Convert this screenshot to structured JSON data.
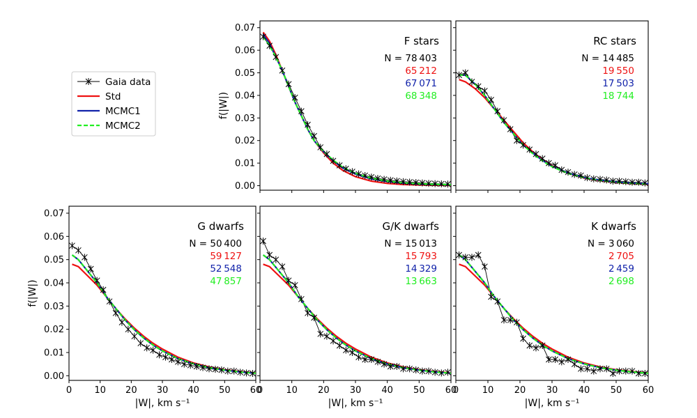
{
  "chart_data": {
    "type": "line",
    "legend": {
      "placement": "left, outside panels",
      "entries": [
        {
          "label": "Gaia data",
          "color": "#000000",
          "style": "line-star-markers"
        },
        {
          "label": "Std",
          "color": "#ee1111",
          "style": "solid"
        },
        {
          "label": "MCMC1",
          "color": "#1122aa",
          "style": "solid"
        },
        {
          "label": "MCMC2",
          "color": "#22ee22",
          "style": "dashed"
        }
      ]
    },
    "x_ticks": [
      "0",
      "10",
      "20",
      "30",
      "40",
      "50",
      "60"
    ],
    "xlim": [
      0,
      60
    ],
    "xlabel": "|W|,  km s⁻¹",
    "ylabel": "f(|W|)",
    "panels": [
      {
        "title": "F stars",
        "ylim": [
          -0.002,
          0.073
        ],
        "y_ticks": [
          "0.00",
          "0.01",
          "0.02",
          "0.03",
          "0.04",
          "0.05",
          "0.06",
          "0.07"
        ],
        "show_ylabel": true,
        "show_xlabel": false,
        "show_xticklabels": false,
        "show_yticklabels": true,
        "counts": [
          "N = 78 403",
          "65 212",
          "67 071",
          "68 348"
        ],
        "gaia": {
          "x": [
            1,
            3,
            5,
            7,
            9,
            11,
            13,
            15,
            17,
            19,
            21,
            23,
            25,
            27,
            29,
            31,
            33,
            35,
            37,
            39,
            41,
            43,
            45,
            47,
            49,
            51,
            53,
            55,
            57,
            59
          ],
          "y": [
            0.066,
            0.062,
            0.057,
            0.051,
            0.045,
            0.039,
            0.033,
            0.027,
            0.022,
            0.017,
            0.014,
            0.011,
            0.009,
            0.0075,
            0.0062,
            0.0052,
            0.0045,
            0.0038,
            0.0032,
            0.0028,
            0.0024,
            0.0021,
            0.0018,
            0.0016,
            0.0014,
            0.0012,
            0.001,
            0.0009,
            0.0008,
            0.0007
          ]
        },
        "std": {
          "x": [
            1,
            3,
            5,
            7,
            9,
            11,
            13,
            15,
            17,
            20,
            23,
            26,
            30,
            35,
            40,
            45,
            50,
            55,
            60
          ],
          "y": [
            0.068,
            0.064,
            0.058,
            0.051,
            0.044,
            0.037,
            0.031,
            0.025,
            0.02,
            0.0145,
            0.01,
            0.0068,
            0.004,
            0.002,
            0.001,
            0.0005,
            0.0003,
            0.0002,
            0.0001
          ]
        },
        "mcmc1": {
          "x": [
            1,
            3,
            5,
            7,
            9,
            11,
            13,
            15,
            17,
            20,
            23,
            26,
            30,
            35,
            40,
            45,
            50,
            55,
            60
          ],
          "y": [
            0.067,
            0.063,
            0.057,
            0.051,
            0.044,
            0.037,
            0.031,
            0.025,
            0.02,
            0.015,
            0.011,
            0.0078,
            0.0052,
            0.003,
            0.0018,
            0.0011,
            0.0007,
            0.0005,
            0.0003
          ]
        },
        "mcmc2": {
          "x": [
            1,
            3,
            5,
            7,
            9,
            11,
            13,
            15,
            17,
            20,
            23,
            26,
            30,
            35,
            40,
            45,
            50,
            55,
            60
          ],
          "y": [
            0.066,
            0.062,
            0.057,
            0.051,
            0.044,
            0.037,
            0.031,
            0.025,
            0.02,
            0.0152,
            0.0113,
            0.0082,
            0.0055,
            0.0033,
            0.002,
            0.0012,
            0.0008,
            0.0006,
            0.0004
          ]
        }
      },
      {
        "title": "RC stars",
        "ylim": [
          -0.002,
          0.073
        ],
        "y_ticks": [
          "0.00",
          "0.01",
          "0.02",
          "0.03",
          "0.04",
          "0.05",
          "0.06",
          "0.07"
        ],
        "show_ylabel": false,
        "show_xlabel": false,
        "show_xticklabels": false,
        "show_yticklabels": false,
        "counts": [
          "N = 14 485",
          "19 550",
          "17 503",
          "18 744"
        ],
        "gaia": {
          "x": [
            1,
            3,
            5,
            7,
            9,
            11,
            13,
            15,
            17,
            19,
            21,
            23,
            25,
            27,
            29,
            31,
            33,
            35,
            37,
            39,
            41,
            43,
            45,
            47,
            49,
            51,
            53,
            55,
            57,
            59
          ],
          "y": [
            0.049,
            0.05,
            0.046,
            0.044,
            0.042,
            0.038,
            0.033,
            0.029,
            0.025,
            0.02,
            0.018,
            0.016,
            0.014,
            0.012,
            0.01,
            0.009,
            0.007,
            0.006,
            0.005,
            0.0045,
            0.0035,
            0.003,
            0.0028,
            0.0025,
            0.002,
            0.002,
            0.0018,
            0.0015,
            0.0015,
            0.0012
          ]
        },
        "std": {
          "x": [
            1,
            3,
            6,
            9,
            12,
            15,
            18,
            21,
            24,
            27,
            30,
            35,
            40,
            45,
            50,
            55,
            60
          ],
          "y": [
            0.047,
            0.046,
            0.043,
            0.039,
            0.034,
            0.029,
            0.024,
            0.019,
            0.015,
            0.0115,
            0.0088,
            0.0055,
            0.0034,
            0.0022,
            0.0014,
            0.0009,
            0.0006
          ]
        },
        "mcmc1": {
          "x": [
            1,
            3,
            6,
            9,
            12,
            15,
            18,
            21,
            24,
            27,
            30,
            35,
            40,
            45,
            50,
            55,
            60
          ],
          "y": [
            0.049,
            0.049,
            0.045,
            0.04,
            0.034,
            0.028,
            0.023,
            0.018,
            0.0145,
            0.0112,
            0.0086,
            0.0056,
            0.0036,
            0.0024,
            0.0016,
            0.0011,
            0.0008
          ]
        },
        "mcmc2": {
          "x": [
            1,
            3,
            6,
            9,
            12,
            15,
            18,
            21,
            24,
            27,
            30,
            35,
            40,
            45,
            50,
            55,
            60
          ],
          "y": [
            0.049,
            0.049,
            0.045,
            0.04,
            0.034,
            0.028,
            0.023,
            0.018,
            0.0142,
            0.011,
            0.0084,
            0.0054,
            0.0035,
            0.0023,
            0.0015,
            0.001,
            0.0007
          ]
        }
      },
      {
        "title": "G dwarfs",
        "ylim": [
          -0.002,
          0.073
        ],
        "y_ticks": [
          "0.00",
          "0.01",
          "0.02",
          "0.03",
          "0.04",
          "0.05",
          "0.06",
          "0.07"
        ],
        "show_ylabel": true,
        "show_xlabel": true,
        "show_xticklabels": true,
        "show_yticklabels": true,
        "counts": [
          "N = 50 400",
          "59 127",
          "52 548",
          "47 857"
        ],
        "gaia": {
          "x": [
            1,
            3,
            5,
            7,
            9,
            11,
            13,
            15,
            17,
            19,
            21,
            23,
            25,
            27,
            29,
            31,
            33,
            35,
            37,
            39,
            41,
            43,
            45,
            47,
            49,
            51,
            53,
            55,
            57,
            59
          ],
          "y": [
            0.056,
            0.054,
            0.051,
            0.046,
            0.041,
            0.037,
            0.032,
            0.027,
            0.023,
            0.02,
            0.017,
            0.014,
            0.012,
            0.011,
            0.009,
            0.008,
            0.007,
            0.006,
            0.005,
            0.0045,
            0.004,
            0.0035,
            0.003,
            0.0028,
            0.0025,
            0.002,
            0.002,
            0.0015,
            0.0012,
            0.001
          ]
        },
        "std": {
          "x": [
            1,
            3,
            6,
            9,
            12,
            15,
            18,
            21,
            24,
            27,
            30,
            35,
            40,
            45,
            50,
            55,
            60
          ],
          "y": [
            0.048,
            0.047,
            0.043,
            0.039,
            0.034,
            0.029,
            0.0245,
            0.0205,
            0.017,
            0.014,
            0.0115,
            0.008,
            0.0055,
            0.0038,
            0.0026,
            0.0018,
            0.0012
          ]
        },
        "mcmc1": {
          "x": [
            1,
            3,
            6,
            9,
            12,
            15,
            18,
            21,
            24,
            27,
            30,
            35,
            40,
            45,
            50,
            55,
            60
          ],
          "y": [
            0.052,
            0.05,
            0.045,
            0.04,
            0.034,
            0.029,
            0.024,
            0.0198,
            0.0162,
            0.0132,
            0.0107,
            0.0074,
            0.0051,
            0.0035,
            0.0024,
            0.0016,
            0.0011
          ]
        },
        "mcmc2": {
          "x": [
            1,
            3,
            6,
            9,
            12,
            15,
            18,
            21,
            24,
            27,
            30,
            35,
            40,
            45,
            50,
            55,
            60
          ],
          "y": [
            0.052,
            0.05,
            0.045,
            0.04,
            0.034,
            0.029,
            0.024,
            0.0198,
            0.0162,
            0.0132,
            0.0107,
            0.0074,
            0.0051,
            0.0035,
            0.0024,
            0.0016,
            0.0011
          ]
        }
      },
      {
        "title": "G/K dwarfs",
        "ylim": [
          -0.002,
          0.073
        ],
        "y_ticks": [
          "0.00",
          "0.01",
          "0.02",
          "0.03",
          "0.04",
          "0.05",
          "0.06",
          "0.07"
        ],
        "show_ylabel": false,
        "show_xlabel": true,
        "show_xticklabels": true,
        "show_yticklabels": false,
        "counts": [
          "N = 15 013",
          "15 793",
          "14 329",
          "13 663"
        ],
        "gaia": {
          "x": [
            1,
            3,
            5,
            7,
            9,
            11,
            13,
            15,
            17,
            19,
            21,
            23,
            25,
            27,
            29,
            31,
            33,
            35,
            37,
            39,
            41,
            43,
            45,
            47,
            49,
            51,
            53,
            55,
            57,
            59
          ],
          "y": [
            0.058,
            0.052,
            0.05,
            0.047,
            0.041,
            0.039,
            0.033,
            0.027,
            0.025,
            0.018,
            0.017,
            0.015,
            0.013,
            0.011,
            0.01,
            0.008,
            0.007,
            0.007,
            0.006,
            0.005,
            0.004,
            0.004,
            0.003,
            0.003,
            0.0025,
            0.002,
            0.002,
            0.0015,
            0.0012,
            0.0015
          ]
        },
        "std": {
          "x": [
            1,
            3,
            6,
            9,
            12,
            15,
            18,
            21,
            24,
            27,
            30,
            35,
            40,
            45,
            50,
            55,
            60
          ],
          "y": [
            0.048,
            0.047,
            0.043,
            0.039,
            0.034,
            0.029,
            0.0245,
            0.0205,
            0.017,
            0.014,
            0.0115,
            0.008,
            0.0055,
            0.0038,
            0.0026,
            0.0018,
            0.0012
          ]
        },
        "mcmc1": {
          "x": [
            1,
            3,
            6,
            9,
            12,
            15,
            18,
            21,
            24,
            27,
            30,
            35,
            40,
            45,
            50,
            55,
            60
          ],
          "y": [
            0.052,
            0.05,
            0.045,
            0.04,
            0.034,
            0.029,
            0.024,
            0.0198,
            0.0162,
            0.0132,
            0.0107,
            0.0074,
            0.0051,
            0.0035,
            0.0024,
            0.0016,
            0.0011
          ]
        },
        "mcmc2": {
          "x": [
            1,
            3,
            6,
            9,
            12,
            15,
            18,
            21,
            24,
            27,
            30,
            35,
            40,
            45,
            50,
            55,
            60
          ],
          "y": [
            0.052,
            0.05,
            0.045,
            0.04,
            0.034,
            0.029,
            0.024,
            0.0198,
            0.0162,
            0.0132,
            0.0107,
            0.0074,
            0.0051,
            0.0035,
            0.0024,
            0.0016,
            0.0011
          ]
        }
      },
      {
        "title": "K dwarfs",
        "ylim": [
          -0.002,
          0.073
        ],
        "y_ticks": [
          "0.00",
          "0.01",
          "0.02",
          "0.03",
          "0.04",
          "0.05",
          "0.06",
          "0.07"
        ],
        "show_ylabel": false,
        "show_xlabel": true,
        "show_xticklabels": true,
        "show_yticklabels": false,
        "counts": [
          "N = 3 060",
          "2 705",
          "2 459",
          "2 698"
        ],
        "gaia": {
          "x": [
            1,
            3,
            5,
            7,
            9,
            11,
            13,
            15,
            17,
            19,
            21,
            23,
            25,
            27,
            29,
            31,
            33,
            35,
            37,
            39,
            41,
            43,
            45,
            47,
            49,
            51,
            53,
            55,
            57,
            59
          ],
          "y": [
            0.052,
            0.051,
            0.051,
            0.052,
            0.047,
            0.034,
            0.032,
            0.024,
            0.024,
            0.023,
            0.016,
            0.013,
            0.012,
            0.013,
            0.007,
            0.007,
            0.006,
            0.007,
            0.005,
            0.003,
            0.003,
            0.002,
            0.003,
            0.003,
            0.001,
            0.002,
            0.002,
            0.002,
            0.001,
            0.001
          ]
        },
        "std": {
          "x": [
            1,
            3,
            6,
            9,
            12,
            15,
            18,
            21,
            24,
            27,
            30,
            35,
            40,
            45,
            50,
            55,
            60
          ],
          "y": [
            0.048,
            0.047,
            0.043,
            0.039,
            0.034,
            0.029,
            0.0245,
            0.0205,
            0.017,
            0.014,
            0.0115,
            0.008,
            0.0055,
            0.0038,
            0.0026,
            0.0018,
            0.0012
          ]
        },
        "mcmc1": {
          "x": [
            1,
            3,
            6,
            9,
            12,
            15,
            18,
            21,
            24,
            27,
            30,
            35,
            40,
            45,
            50,
            55,
            60
          ],
          "y": [
            0.052,
            0.05,
            0.045,
            0.04,
            0.034,
            0.029,
            0.024,
            0.0198,
            0.0162,
            0.0132,
            0.0107,
            0.0074,
            0.0051,
            0.0035,
            0.0024,
            0.0016,
            0.0011
          ]
        },
        "mcmc2": {
          "x": [
            1,
            3,
            6,
            9,
            12,
            15,
            18,
            21,
            24,
            27,
            30,
            35,
            40,
            45,
            50,
            55,
            60
          ],
          "y": [
            0.052,
            0.05,
            0.045,
            0.04,
            0.034,
            0.029,
            0.024,
            0.0198,
            0.0162,
            0.0132,
            0.0107,
            0.0074,
            0.0051,
            0.0035,
            0.0024,
            0.0016,
            0.0011
          ]
        }
      }
    ]
  }
}
